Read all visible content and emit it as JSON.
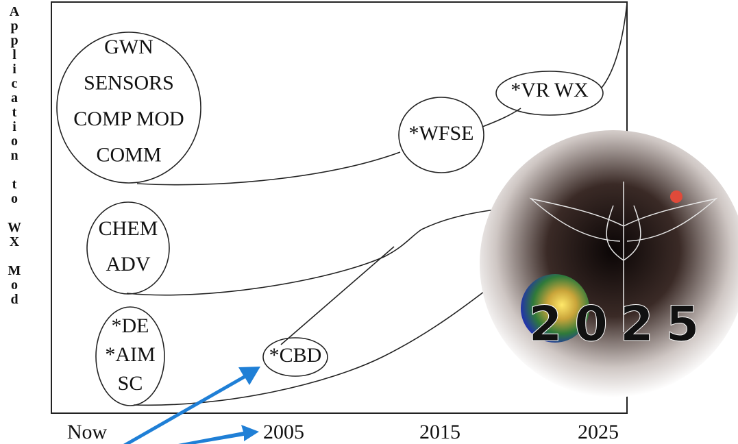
{
  "y_axis_label": "Application to WX Mod",
  "x_labels": [
    "Now",
    "2005",
    "2015",
    "2025"
  ],
  "nodes": [
    {
      "lines": [
        "GWN",
        "SENSORS",
        "COMP MOD",
        "COMM"
      ]
    },
    {
      "lines": [
        "CHEM",
        "ADV"
      ]
    },
    {
      "lines": [
        "*DE",
        "*AIM",
        "SC"
      ]
    },
    {
      "lines": [
        "*CBD"
      ]
    },
    {
      "lines": [
        "*WFSE"
      ]
    },
    {
      "lines": [
        "*VR WX"
      ]
    }
  ],
  "logo": {
    "text": "2025"
  }
}
